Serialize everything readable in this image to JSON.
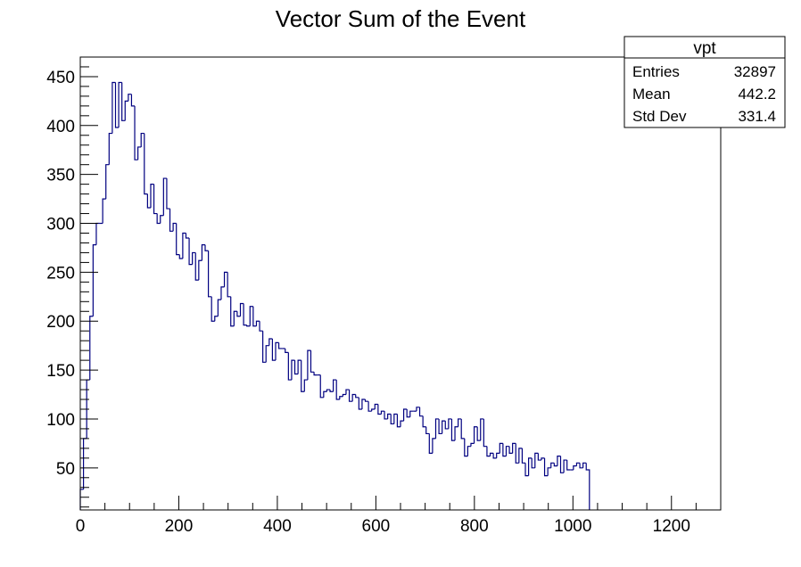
{
  "chart_data": {
    "type": "bar",
    "title": "Vector Sum of the Event",
    "xlabel": "",
    "ylabel": "",
    "xlim": [
      0,
      1300
    ],
    "ylim": [
      7,
      470
    ],
    "bin_width": 6.5,
    "x_ticks": [
      0,
      200,
      400,
      600,
      800,
      1000,
      1200
    ],
    "y_ticks": [
      50,
      100,
      150,
      200,
      250,
      300,
      350,
      400,
      450
    ],
    "line_color": "#000080",
    "grid": false,
    "legend": "none",
    "values": [
      28,
      80,
      140,
      205,
      278,
      300,
      300,
      325,
      360,
      392,
      444,
      398,
      444,
      405,
      425,
      432,
      420,
      365,
      378,
      392,
      330,
      316,
      340,
      310,
      300,
      308,
      346,
      315,
      292,
      300,
      268,
      264,
      290,
      285,
      258,
      270,
      242,
      262,
      278,
      272,
      225,
      200,
      205,
      222,
      235,
      250,
      225,
      195,
      210,
      205,
      218,
      196,
      195,
      215,
      195,
      200,
      190,
      158,
      175,
      182,
      160,
      178,
      172,
      172,
      168,
      140,
      160,
      146,
      160,
      128,
      140,
      170,
      148,
      145,
      145,
      122,
      128,
      130,
      128,
      140,
      120,
      123,
      125,
      130,
      118,
      125,
      122,
      110,
      120,
      118,
      108,
      110,
      115,
      105,
      108,
      100,
      105,
      95,
      105,
      92,
      98,
      110,
      102,
      108,
      108,
      112,
      103,
      92,
      85,
      65,
      80,
      100,
      85,
      98,
      90,
      100,
      78,
      92,
      100,
      80,
      62,
      72,
      75,
      92,
      78,
      100,
      72,
      62,
      65,
      60,
      65,
      75,
      62,
      72,
      65,
      75,
      55,
      70,
      55,
      42,
      60,
      50,
      65,
      58,
      60,
      42,
      50,
      55,
      52,
      62,
      45,
      58,
      48,
      48,
      52,
      55,
      50,
      55,
      48
    ]
  },
  "stats": {
    "name": "vpt",
    "rows": [
      {
        "label": "Entries",
        "value": "32897"
      },
      {
        "label": "Mean",
        "value": "442.2"
      },
      {
        "label": "Std Dev",
        "value": "331.4"
      }
    ]
  }
}
